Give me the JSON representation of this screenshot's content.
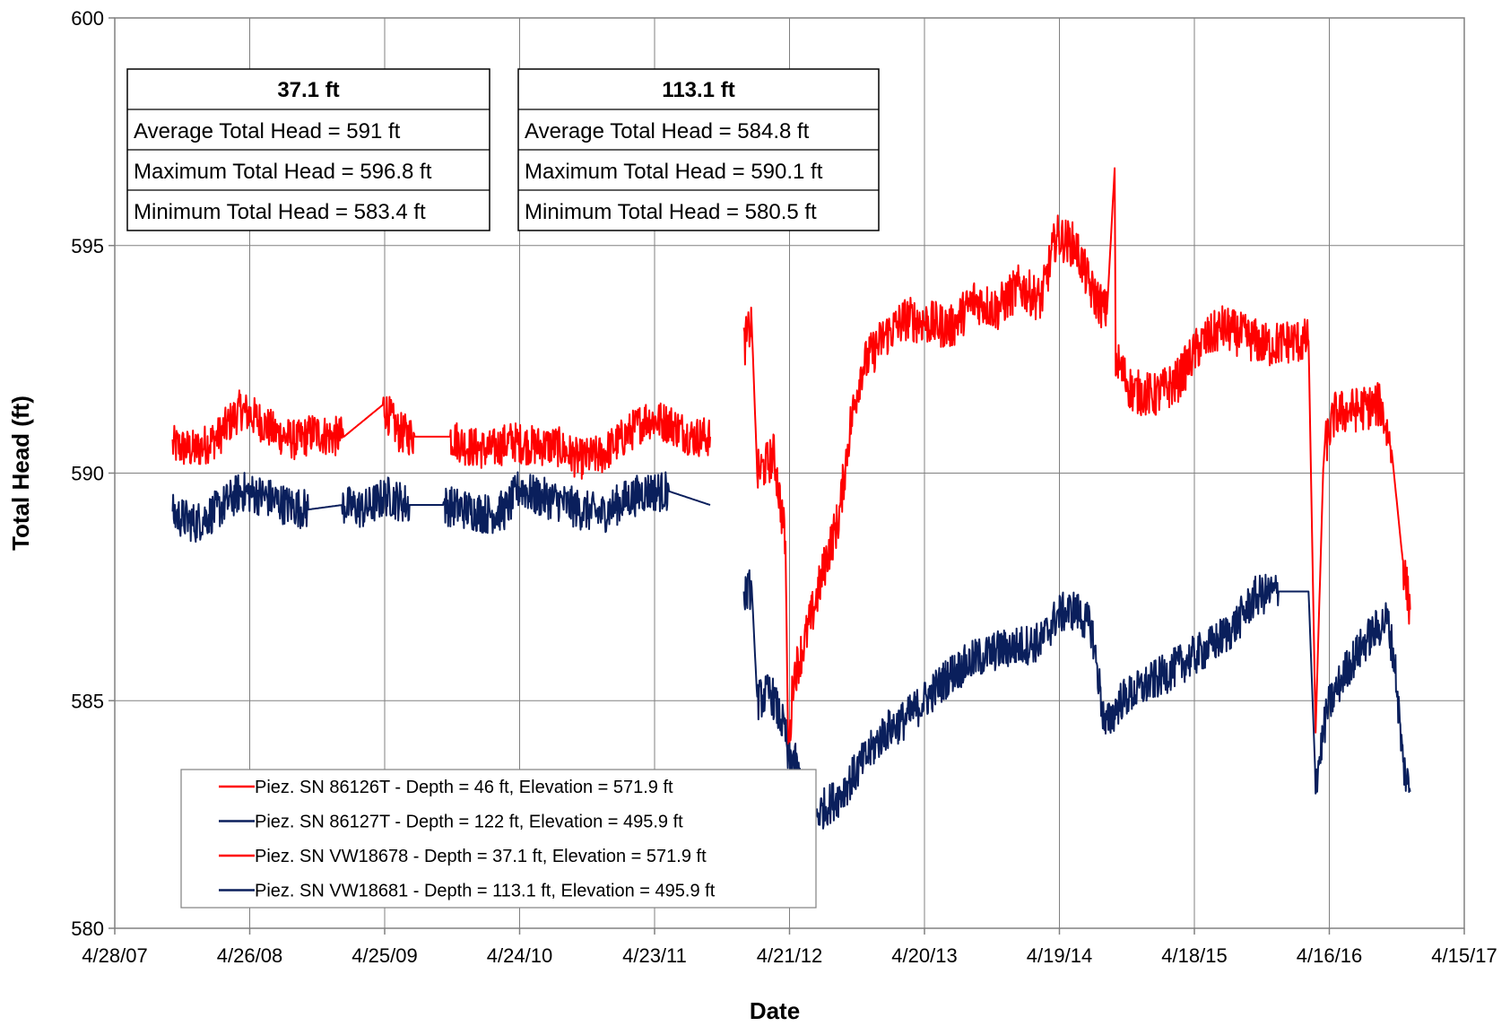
{
  "chart_data": {
    "type": "line",
    "xlabel": "Date",
    "ylabel": "Total Head (ft)",
    "x_axis": {
      "type": "date",
      "range": [
        "2007-04-28",
        "2017-04-15"
      ],
      "ticks": [
        "2007-04-28",
        "2008-04-26",
        "2009-04-25",
        "2010-04-24",
        "2011-04-23",
        "2012-04-21",
        "2013-04-20",
        "2014-04-19",
        "2015-04-18",
        "2016-04-16",
        "2017-04-15"
      ],
      "tick_labels": [
        "4/28/07",
        "4/26/08",
        "4/25/09",
        "4/24/10",
        "4/23/11",
        "4/21/12",
        "4/20/13",
        "4/19/14",
        "4/18/15",
        "4/16/16",
        "4/15/17"
      ]
    },
    "y_axis": {
      "range": [
        580,
        600
      ],
      "ticks": [
        580,
        585,
        590,
        595,
        600
      ],
      "tick_labels": [
        "580",
        "585",
        "590",
        "595",
        "600"
      ]
    },
    "grid": true,
    "legend_placement": "bottom-left",
    "stats_tables": [
      {
        "header": "37.1 ft",
        "rows": [
          "Average Total Head = 591 ft",
          "Maximum Total Head = 596.8 ft",
          "Minimum Total Head = 583.4 ft"
        ]
      },
      {
        "header": "113.1 ft",
        "rows": [
          "Average Total Head = 584.8 ft",
          "Maximum Total Head = 590.1 ft",
          "Minimum Total Head = 580.5 ft"
        ]
      }
    ],
    "series": [
      {
        "name": "Piez. SN 86126T - Depth = 46 ft, Elevation = 571.9 ft",
        "color": "#ff0000",
        "noise": 0.45,
        "points": [
          [
            "2007-10-01",
            590.6
          ],
          [
            "2007-12-01",
            590.5
          ],
          [
            "2008-02-01",
            590.8
          ],
          [
            "2008-04-01",
            591.4
          ],
          [
            "2008-05-15",
            591.2
          ],
          [
            "2008-07-01",
            590.9
          ],
          [
            "2008-09-01",
            590.7
          ],
          [
            "2008-10-15",
            590.9
          ],
          [
            "2008-12-01",
            590.8
          ],
          [
            "2009-01-05",
            590.8
          ],
          [
            "2009-04-20",
            591.5
          ],
          [
            "2009-06-01",
            590.9
          ],
          [
            "2009-07-15",
            590.8
          ],
          [
            "2009-10-20",
            590.8
          ],
          [
            "2009-12-01",
            590.6
          ],
          [
            "2010-02-01",
            590.5
          ],
          [
            "2010-04-01",
            590.7
          ],
          [
            "2010-06-01",
            590.6
          ],
          [
            "2010-08-01",
            590.6
          ],
          [
            "2010-10-01",
            590.3
          ],
          [
            "2010-12-01",
            590.4
          ],
          [
            "2011-02-01",
            590.8
          ],
          [
            "2011-04-01",
            591.2
          ],
          [
            "2011-06-01",
            591.1
          ],
          [
            "2011-08-01",
            590.8
          ],
          [
            "2011-09-20",
            590.8
          ]
        ]
      },
      {
        "name": "Piez. SN 86127T - Depth = 122 ft, Elevation = 495.9 ft",
        "color": "#0a1f5c",
        "noise": 0.45,
        "points": [
          [
            "2007-10-01",
            589.1
          ],
          [
            "2007-12-01",
            588.9
          ],
          [
            "2008-02-01",
            589.2
          ],
          [
            "2008-04-01",
            589.6
          ],
          [
            "2008-06-01",
            589.5
          ],
          [
            "2008-08-01",
            589.3
          ],
          [
            "2008-10-01",
            589.2
          ],
          [
            "2009-01-01",
            589.3
          ],
          [
            "2009-03-01",
            589.2
          ],
          [
            "2009-05-01",
            589.5
          ],
          [
            "2009-07-01",
            589.3
          ],
          [
            "2009-10-01",
            589.3
          ],
          [
            "2009-12-01",
            589.2
          ],
          [
            "2010-02-01",
            589.1
          ],
          [
            "2010-03-20",
            589.2
          ],
          [
            "2010-04-25",
            589.7
          ],
          [
            "2010-06-01",
            589.5
          ],
          [
            "2010-08-01",
            589.4
          ],
          [
            "2010-10-01",
            589.2
          ],
          [
            "2010-12-01",
            589.1
          ],
          [
            "2011-02-01",
            589.4
          ],
          [
            "2011-04-01",
            589.6
          ],
          [
            "2011-06-01",
            589.6
          ],
          [
            "2011-09-20",
            589.3
          ]
        ]
      },
      {
        "name": "Piez. SN VW18678 - Depth = 37.1 ft, Elevation = 571.9 ft",
        "color": "#ff0000",
        "noise": 0.5,
        "points": [
          [
            "2011-12-20",
            592.8
          ],
          [
            "2012-01-10",
            593.3
          ],
          [
            "2012-01-25",
            590.0
          ],
          [
            "2012-02-20",
            590.2
          ],
          [
            "2012-03-10",
            590.4
          ],
          [
            "2012-04-10",
            588.5
          ],
          [
            "2012-04-18",
            583.6
          ],
          [
            "2012-05-01",
            585.5
          ],
          [
            "2012-06-01",
            586.3
          ],
          [
            "2012-07-01",
            587.2
          ],
          [
            "2012-08-01",
            588.2
          ],
          [
            "2012-09-01",
            589.0
          ],
          [
            "2012-10-01",
            591.0
          ],
          [
            "2012-11-01",
            592.3
          ],
          [
            "2013-01-01",
            593.0
          ],
          [
            "2013-03-01",
            593.4
          ],
          [
            "2013-05-01",
            593.3
          ],
          [
            "2013-07-01",
            593.2
          ],
          [
            "2013-09-01",
            593.8
          ],
          [
            "2013-11-01",
            593.6
          ],
          [
            "2014-01-01",
            594.1
          ],
          [
            "2014-03-01",
            593.8
          ],
          [
            "2014-04-10",
            595.2
          ],
          [
            "2014-06-01",
            595.0
          ],
          [
            "2014-07-15",
            594.0
          ],
          [
            "2014-08-25",
            593.5
          ],
          [
            "2014-09-15",
            596.7
          ],
          [
            "2014-09-18",
            592.5
          ],
          [
            "2014-11-01",
            591.8
          ],
          [
            "2015-01-01",
            591.7
          ],
          [
            "2015-03-01",
            592.0
          ],
          [
            "2015-05-01",
            592.8
          ],
          [
            "2015-07-01",
            593.2
          ],
          [
            "2015-09-01",
            593.0
          ],
          [
            "2015-11-01",
            592.8
          ],
          [
            "2016-01-01",
            592.9
          ],
          [
            "2016-02-20",
            592.9
          ],
          [
            "2016-03-10",
            584.3
          ],
          [
            "2016-04-01",
            590.5
          ],
          [
            "2016-05-01",
            591.3
          ],
          [
            "2016-07-01",
            591.4
          ],
          [
            "2016-09-01",
            591.5
          ],
          [
            "2016-10-01",
            590.5
          ],
          [
            "2016-11-01",
            588.0
          ],
          [
            "2016-11-20",
            587.0
          ]
        ]
      },
      {
        "name": "Piez. SN VW18681 - Depth = 113.1 ft, Elevation = 495.9 ft",
        "color": "#0a1f5c",
        "noise": 0.45,
        "points": [
          [
            "2011-12-20",
            587.3
          ],
          [
            "2012-01-10",
            587.5
          ],
          [
            "2012-01-25",
            585.0
          ],
          [
            "2012-03-01",
            585.2
          ],
          [
            "2012-04-10",
            584.3
          ],
          [
            "2012-04-18",
            583.6
          ],
          [
            "2012-05-01",
            583.8
          ],
          [
            "2012-06-01",
            582.8
          ],
          [
            "2012-07-01",
            582.5
          ],
          [
            "2012-09-01",
            582.9
          ],
          [
            "2012-11-01",
            583.6
          ],
          [
            "2013-01-01",
            584.3
          ],
          [
            "2013-03-01",
            584.6
          ],
          [
            "2013-05-01",
            585.1
          ],
          [
            "2013-07-01",
            585.6
          ],
          [
            "2013-09-01",
            585.9
          ],
          [
            "2013-11-01",
            586.1
          ],
          [
            "2014-01-01",
            586.2
          ],
          [
            "2014-03-01",
            586.3
          ],
          [
            "2014-04-15",
            586.9
          ],
          [
            "2014-06-01",
            587.0
          ],
          [
            "2014-07-15",
            586.6
          ],
          [
            "2014-08-20",
            584.4
          ],
          [
            "2014-10-01",
            585.0
          ],
          [
            "2014-12-01",
            585.3
          ],
          [
            "2015-02-01",
            585.6
          ],
          [
            "2015-04-01",
            585.9
          ],
          [
            "2015-06-01",
            586.2
          ],
          [
            "2015-08-01",
            586.6
          ],
          [
            "2015-10-01",
            587.3
          ],
          [
            "2015-12-01",
            587.4
          ],
          [
            "2016-02-20",
            587.4
          ],
          [
            "2016-03-10",
            583.2
          ],
          [
            "2016-04-10",
            584.8
          ],
          [
            "2016-06-01",
            585.7
          ],
          [
            "2016-08-01",
            586.4
          ],
          [
            "2016-09-20",
            586.8
          ],
          [
            "2016-10-10",
            585.8
          ],
          [
            "2016-11-01",
            583.6
          ],
          [
            "2016-11-20",
            583.0
          ]
        ]
      }
    ]
  }
}
